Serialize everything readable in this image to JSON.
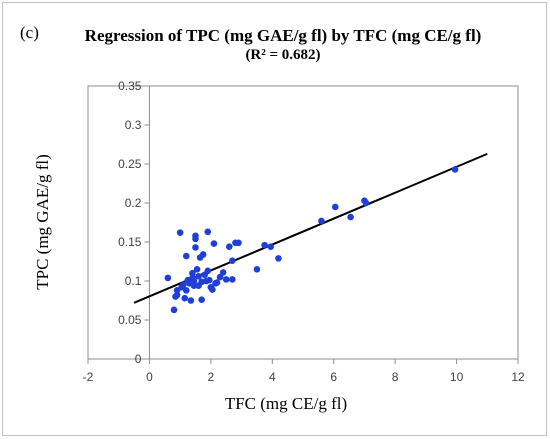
{
  "panel_label": "(c)",
  "chart_data": {
    "type": "scatter",
    "title": "Regression of TPC (mg GAE/g fl) by TFC (mg CE/g fl)",
    "subtitle": "(R² = 0.682)",
    "xlabel": "TFC (mg CE/g fl)",
    "ylabel": "TPC (mg GAE/g fl)",
    "xlim": [
      -2,
      12
    ],
    "ylim": [
      0,
      0.35
    ],
    "xticks": [
      -2,
      0,
      2,
      4,
      6,
      8,
      10,
      12
    ],
    "xtick_labels": [
      "-2",
      "0",
      "2",
      "4",
      "6",
      "8",
      "10",
      "12"
    ],
    "yticks": [
      0,
      0.05,
      0.1,
      0.15,
      0.2,
      0.25,
      0.3,
      0.35
    ],
    "ytick_labels": [
      "0",
      "0.05",
      "0.1",
      "0.15",
      "0.2",
      "0.25",
      "0.3",
      "0.35"
    ],
    "grid": false,
    "marker_color": "#1f3fd6",
    "line_color": "#000000",
    "trendline": {
      "x": [
        -0.5,
        11
      ],
      "y": [
        0.072,
        0.263
      ]
    },
    "points": [
      [
        0.6,
        0.104
      ],
      [
        0.8,
        0.063
      ],
      [
        0.85,
        0.08
      ],
      [
        0.9,
        0.088
      ],
      [
        0.9,
        0.082
      ],
      [
        1.0,
        0.162
      ],
      [
        1.05,
        0.092
      ],
      [
        1.1,
        0.095
      ],
      [
        1.15,
        0.078
      ],
      [
        1.2,
        0.132
      ],
      [
        1.2,
        0.088
      ],
      [
        1.25,
        0.101
      ],
      [
        1.3,
        0.097
      ],
      [
        1.35,
        0.075
      ],
      [
        1.4,
        0.11
      ],
      [
        1.4,
        0.104
      ],
      [
        1.45,
        0.1
      ],
      [
        1.45,
        0.094
      ],
      [
        1.5,
        0.158
      ],
      [
        1.5,
        0.154
      ],
      [
        1.5,
        0.143
      ],
      [
        1.55,
        0.115
      ],
      [
        1.6,
        0.106
      ],
      [
        1.6,
        0.094
      ],
      [
        1.65,
        0.13
      ],
      [
        1.7,
        0.099
      ],
      [
        1.7,
        0.076
      ],
      [
        1.75,
        0.134
      ],
      [
        1.8,
        0.108
      ],
      [
        1.85,
        0.1
      ],
      [
        1.9,
        0.113
      ],
      [
        1.9,
        0.163
      ],
      [
        1.95,
        0.101
      ],
      [
        2.0,
        0.092
      ],
      [
        2.05,
        0.089
      ],
      [
        2.1,
        0.148
      ],
      [
        2.15,
        0.097
      ],
      [
        2.2,
        0.098
      ],
      [
        2.3,
        0.105
      ],
      [
        2.4,
        0.111
      ],
      [
        2.5,
        0.102
      ],
      [
        2.6,
        0.144
      ],
      [
        2.7,
        0.126
      ],
      [
        2.7,
        0.102
      ],
      [
        2.8,
        0.149
      ],
      [
        2.9,
        0.149
      ],
      [
        3.5,
        0.115
      ],
      [
        3.75,
        0.146
      ],
      [
        3.95,
        0.144
      ],
      [
        4.2,
        0.129
      ],
      [
        5.6,
        0.177
      ],
      [
        6.05,
        0.195
      ],
      [
        6.55,
        0.182
      ],
      [
        7.0,
        0.203
      ],
      [
        7.05,
        0.2
      ],
      [
        9.95,
        0.243
      ]
    ]
  }
}
